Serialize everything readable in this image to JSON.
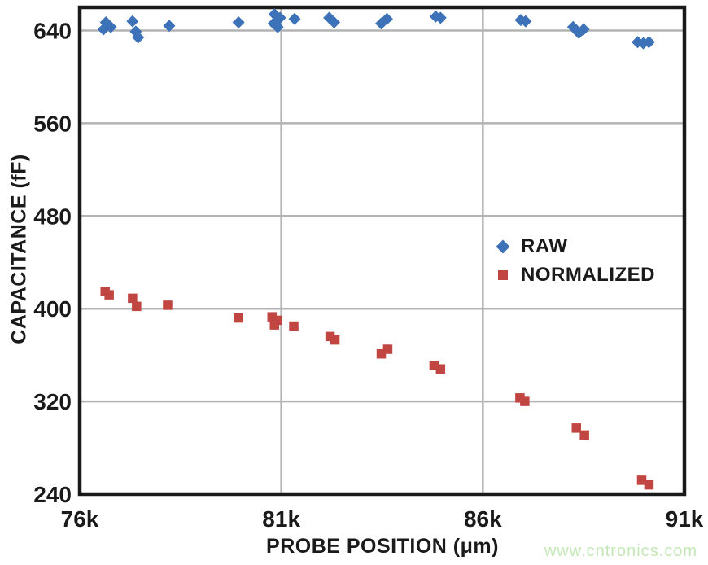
{
  "figure": {
    "watermark": "www.cntronics.com"
  },
  "chart_data": {
    "type": "scatter",
    "title": "",
    "xlabel": "PROBE POSITION (μm)",
    "ylabel": "CAPACITANCE (fF)",
    "xlim": [
      76000,
      91000
    ],
    "ylim": [
      240,
      660
    ],
    "grid": true,
    "legend_position": "inside-right",
    "x_ticks": {
      "values": [
        76000,
        81000,
        86000,
        91000
      ],
      "labels": [
        "76k",
        "81k",
        "86k",
        "91k"
      ]
    },
    "y_ticks": {
      "values": [
        240,
        320,
        400,
        480,
        560,
        640
      ],
      "labels": [
        "240",
        "320",
        "400",
        "480",
        "560",
        "640"
      ]
    },
    "colors": {
      "grid": "#b3b3b3",
      "axis": "#1a1a1a",
      "raw": "#3d72b8",
      "normalized": "#c14540"
    },
    "series": [
      {
        "name": "RAW",
        "marker": "diamond",
        "color": "#3d72b8",
        "points": [
          [
            76650,
            647
          ],
          [
            76770,
            643
          ],
          [
            76590,
            641
          ],
          [
            77310,
            648
          ],
          [
            77390,
            639
          ],
          [
            77450,
            634
          ],
          [
            78220,
            644
          ],
          [
            79940,
            647
          ],
          [
            80830,
            654
          ],
          [
            80970,
            651
          ],
          [
            80810,
            646
          ],
          [
            80910,
            643
          ],
          [
            81330,
            650
          ],
          [
            82190,
            651
          ],
          [
            82310,
            647
          ],
          [
            83480,
            646
          ],
          [
            83620,
            650
          ],
          [
            84830,
            652
          ],
          [
            84950,
            651
          ],
          [
            86940,
            649
          ],
          [
            87060,
            648
          ],
          [
            88240,
            643
          ],
          [
            88380,
            638
          ],
          [
            88500,
            641
          ],
          [
            89840,
            630
          ],
          [
            89980,
            629
          ],
          [
            90120,
            630
          ]
        ]
      },
      {
        "name": "NORMALIZED",
        "marker": "square",
        "color": "#c14540",
        "points": [
          [
            76630,
            415
          ],
          [
            76730,
            412
          ],
          [
            77310,
            409
          ],
          [
            77410,
            402
          ],
          [
            78180,
            403
          ],
          [
            79940,
            392
          ],
          [
            80770,
            393
          ],
          [
            80910,
            390
          ],
          [
            80830,
            386
          ],
          [
            81310,
            385
          ],
          [
            82210,
            376
          ],
          [
            82330,
            373
          ],
          [
            83480,
            361
          ],
          [
            83640,
            365
          ],
          [
            84790,
            351
          ],
          [
            84950,
            348
          ],
          [
            86920,
            323
          ],
          [
            87040,
            320
          ],
          [
            88320,
            297
          ],
          [
            88520,
            291
          ],
          [
            89940,
            252
          ],
          [
            90120,
            248
          ]
        ]
      }
    ]
  }
}
